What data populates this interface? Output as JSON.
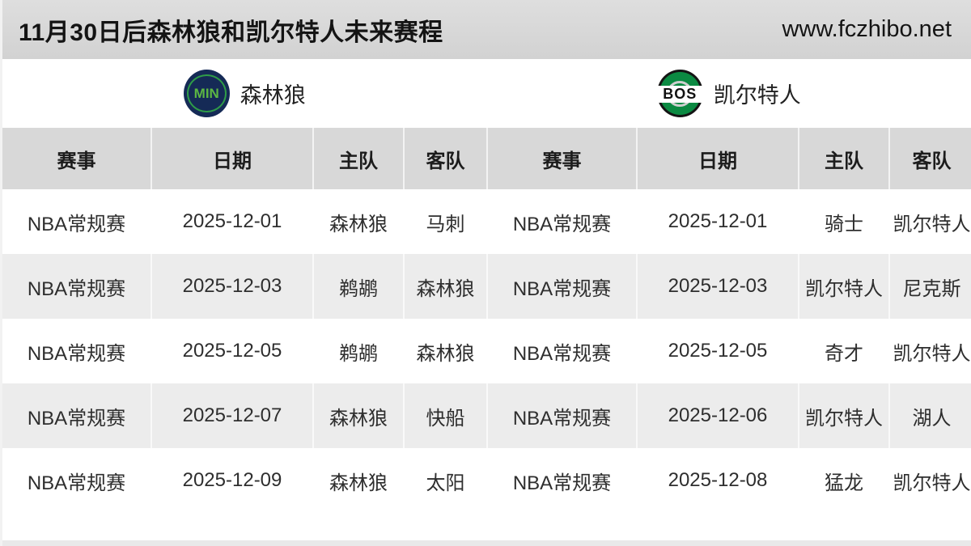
{
  "header": {
    "title": "11月30日后森林狼和凯尔特人未来赛程",
    "site_url": "www.fczhibo.net"
  },
  "teams": {
    "left": {
      "abbr": "MIN",
      "name": "森林狼",
      "logo_bg": "#152a56",
      "logo_text_color": "#5cb743",
      "logo_ring_color": "#2f9c48"
    },
    "right": {
      "abbr": "BOS",
      "name": "凯尔特人",
      "logo_bg": "#0b8a42",
      "logo_text_color": "#111111",
      "logo_band_color": "#ffffff"
    }
  },
  "table": {
    "columns": [
      "赛事",
      "日期",
      "主队",
      "客队",
      "赛事",
      "日期",
      "主队",
      "客队"
    ],
    "rows": [
      [
        "NBA常规赛",
        "2025-12-01",
        "森林狼",
        "马刺",
        "NBA常规赛",
        "2025-12-01",
        "骑士",
        "凯尔特人"
      ],
      [
        "NBA常规赛",
        "2025-12-03",
        "鹈鹕",
        "森林狼",
        "NBA常规赛",
        "2025-12-03",
        "凯尔特人",
        "尼克斯"
      ],
      [
        "NBA常规赛",
        "2025-12-05",
        "鹈鹕",
        "森林狼",
        "NBA常规赛",
        "2025-12-05",
        "奇才",
        "凯尔特人"
      ],
      [
        "NBA常规赛",
        "2025-12-07",
        "森林狼",
        "快船",
        "NBA常规赛",
        "2025-12-06",
        "凯尔特人",
        "湖人"
      ],
      [
        "NBA常规赛",
        "2025-12-09",
        "森林狼",
        "太阳",
        "NBA常规赛",
        "2025-12-08",
        "猛龙",
        "凯尔特人"
      ]
    ]
  },
  "colors": {
    "topbar_bg": "#d7d7d7",
    "table_header_bg": "#d8d8d8",
    "alt_row_bg": "#ececec",
    "text": "#2e2e2e"
  }
}
